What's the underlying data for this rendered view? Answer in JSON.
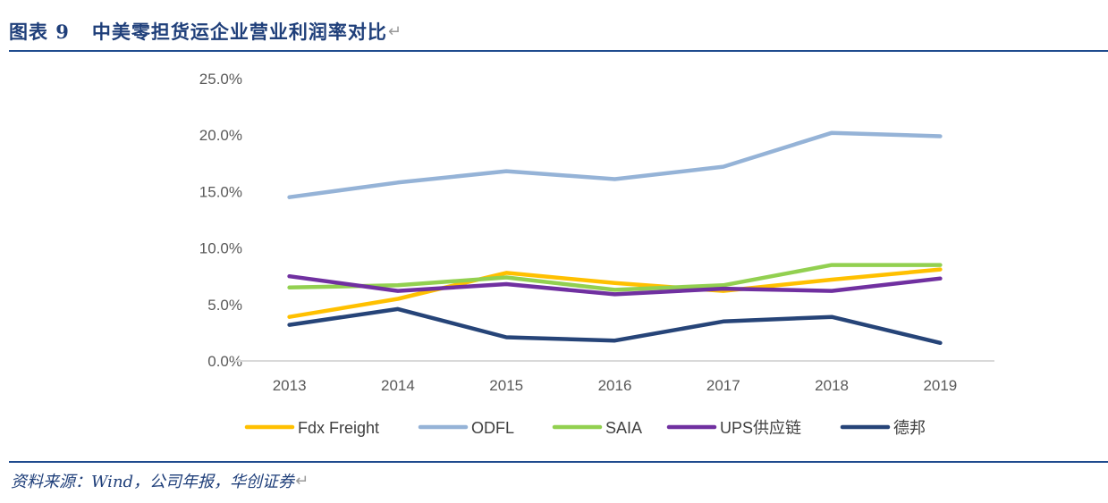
{
  "header": {
    "title": "图表 9   中美零担货运企业营业利润率对比",
    "paragraph_mark": "↵"
  },
  "footer": {
    "source": "资料来源：Wind，公司年报，华创证券",
    "paragraph_mark": "↵"
  },
  "chart_data": {
    "type": "line",
    "title": "中美零担货运企业营业利润率对比",
    "xlabel": "",
    "ylabel": "",
    "categories": [
      "2013",
      "2014",
      "2015",
      "2016",
      "2017",
      "2018",
      "2019"
    ],
    "ylim": [
      0,
      25
    ],
    "yticks": [
      "0.0%",
      "5.0%",
      "10.0%",
      "15.0%",
      "20.0%",
      "25.0%"
    ],
    "ytick_values": [
      0,
      5,
      10,
      15,
      20,
      25
    ],
    "grid": false,
    "legend_position": "bottom",
    "series": [
      {
        "name": "Fdx Freight",
        "color": "#ffc000",
        "values": [
          3.9,
          5.5,
          7.8,
          6.9,
          6.2,
          7.2,
          8.1
        ]
      },
      {
        "name": "ODFL",
        "color": "#95b3d7",
        "values": [
          14.5,
          15.8,
          16.8,
          16.1,
          17.2,
          20.2,
          19.9
        ]
      },
      {
        "name": "SAIA",
        "color": "#92d050",
        "values": [
          6.5,
          6.7,
          7.4,
          6.3,
          6.7,
          8.5,
          8.5
        ]
      },
      {
        "name": "UPS供应链",
        "color": "#7030a0",
        "values": [
          7.5,
          6.2,
          6.8,
          5.9,
          6.4,
          6.2,
          7.3
        ]
      },
      {
        "name": "德邦",
        "color": "#264478",
        "values": [
          3.2,
          4.6,
          2.1,
          1.8,
          3.5,
          3.9,
          1.6
        ]
      }
    ]
  }
}
